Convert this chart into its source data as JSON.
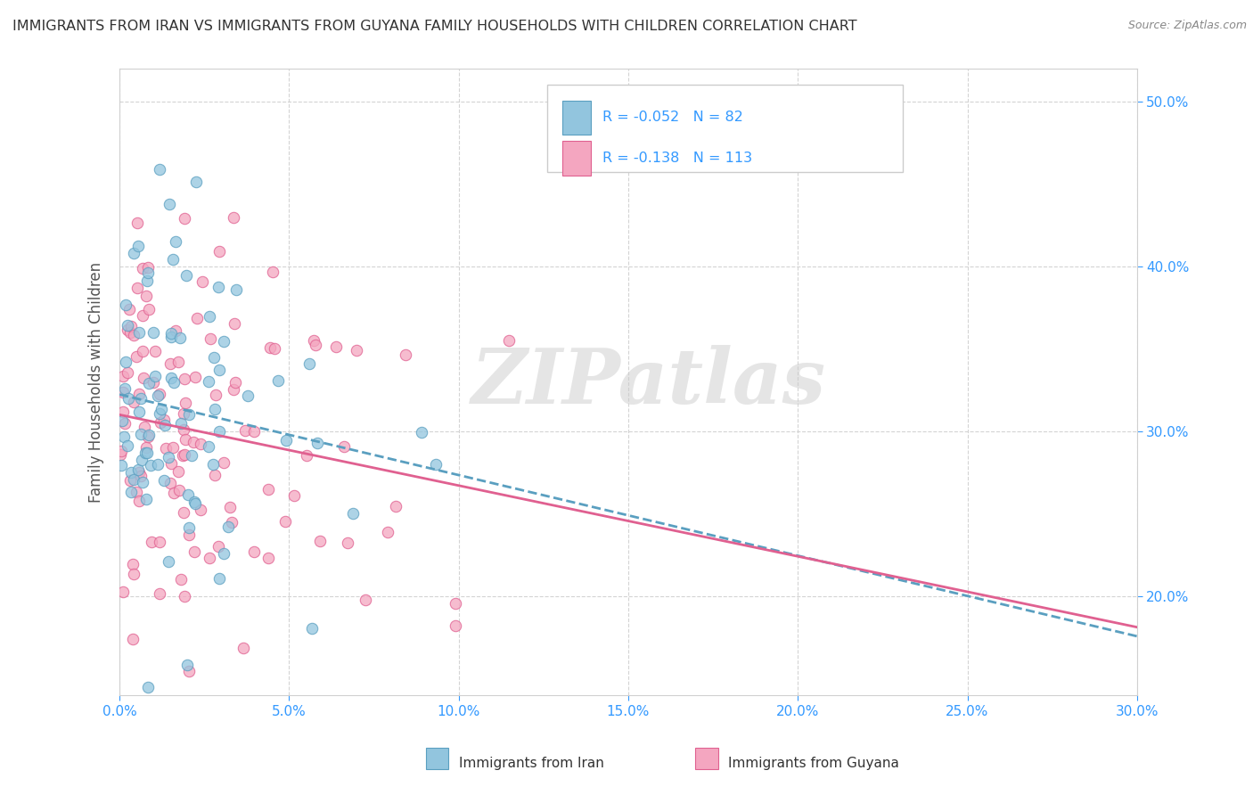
{
  "title": "IMMIGRANTS FROM IRAN VS IMMIGRANTS FROM GUYANA FAMILY HOUSEHOLDS WITH CHILDREN CORRELATION CHART",
  "source": "Source: ZipAtlas.com",
  "ylabel": "Family Households with Children",
  "xlim": [
    0.0,
    0.3
  ],
  "ylim": [
    0.14,
    0.52
  ],
  "xticks": [
    0.0,
    0.05,
    0.1,
    0.15,
    0.2,
    0.25,
    0.3
  ],
  "yticks": [
    0.2,
    0.3,
    0.4,
    0.5
  ],
  "iran_R": -0.052,
  "iran_N": 82,
  "guyana_R": -0.138,
  "guyana_N": 113,
  "iran_color": "#92c5de",
  "guyana_color": "#f4a6c0",
  "iran_edge_color": "#5a9fc0",
  "guyana_edge_color": "#e06090",
  "watermark": "ZIPatlas",
  "legend_text_color": "#3399ff",
  "tick_color": "#3399ff",
  "background_color": "#ffffff",
  "grid_color": "#d0d0d0",
  "ylabel_color": "#555555",
  "title_color": "#333333",
  "source_color": "#888888"
}
